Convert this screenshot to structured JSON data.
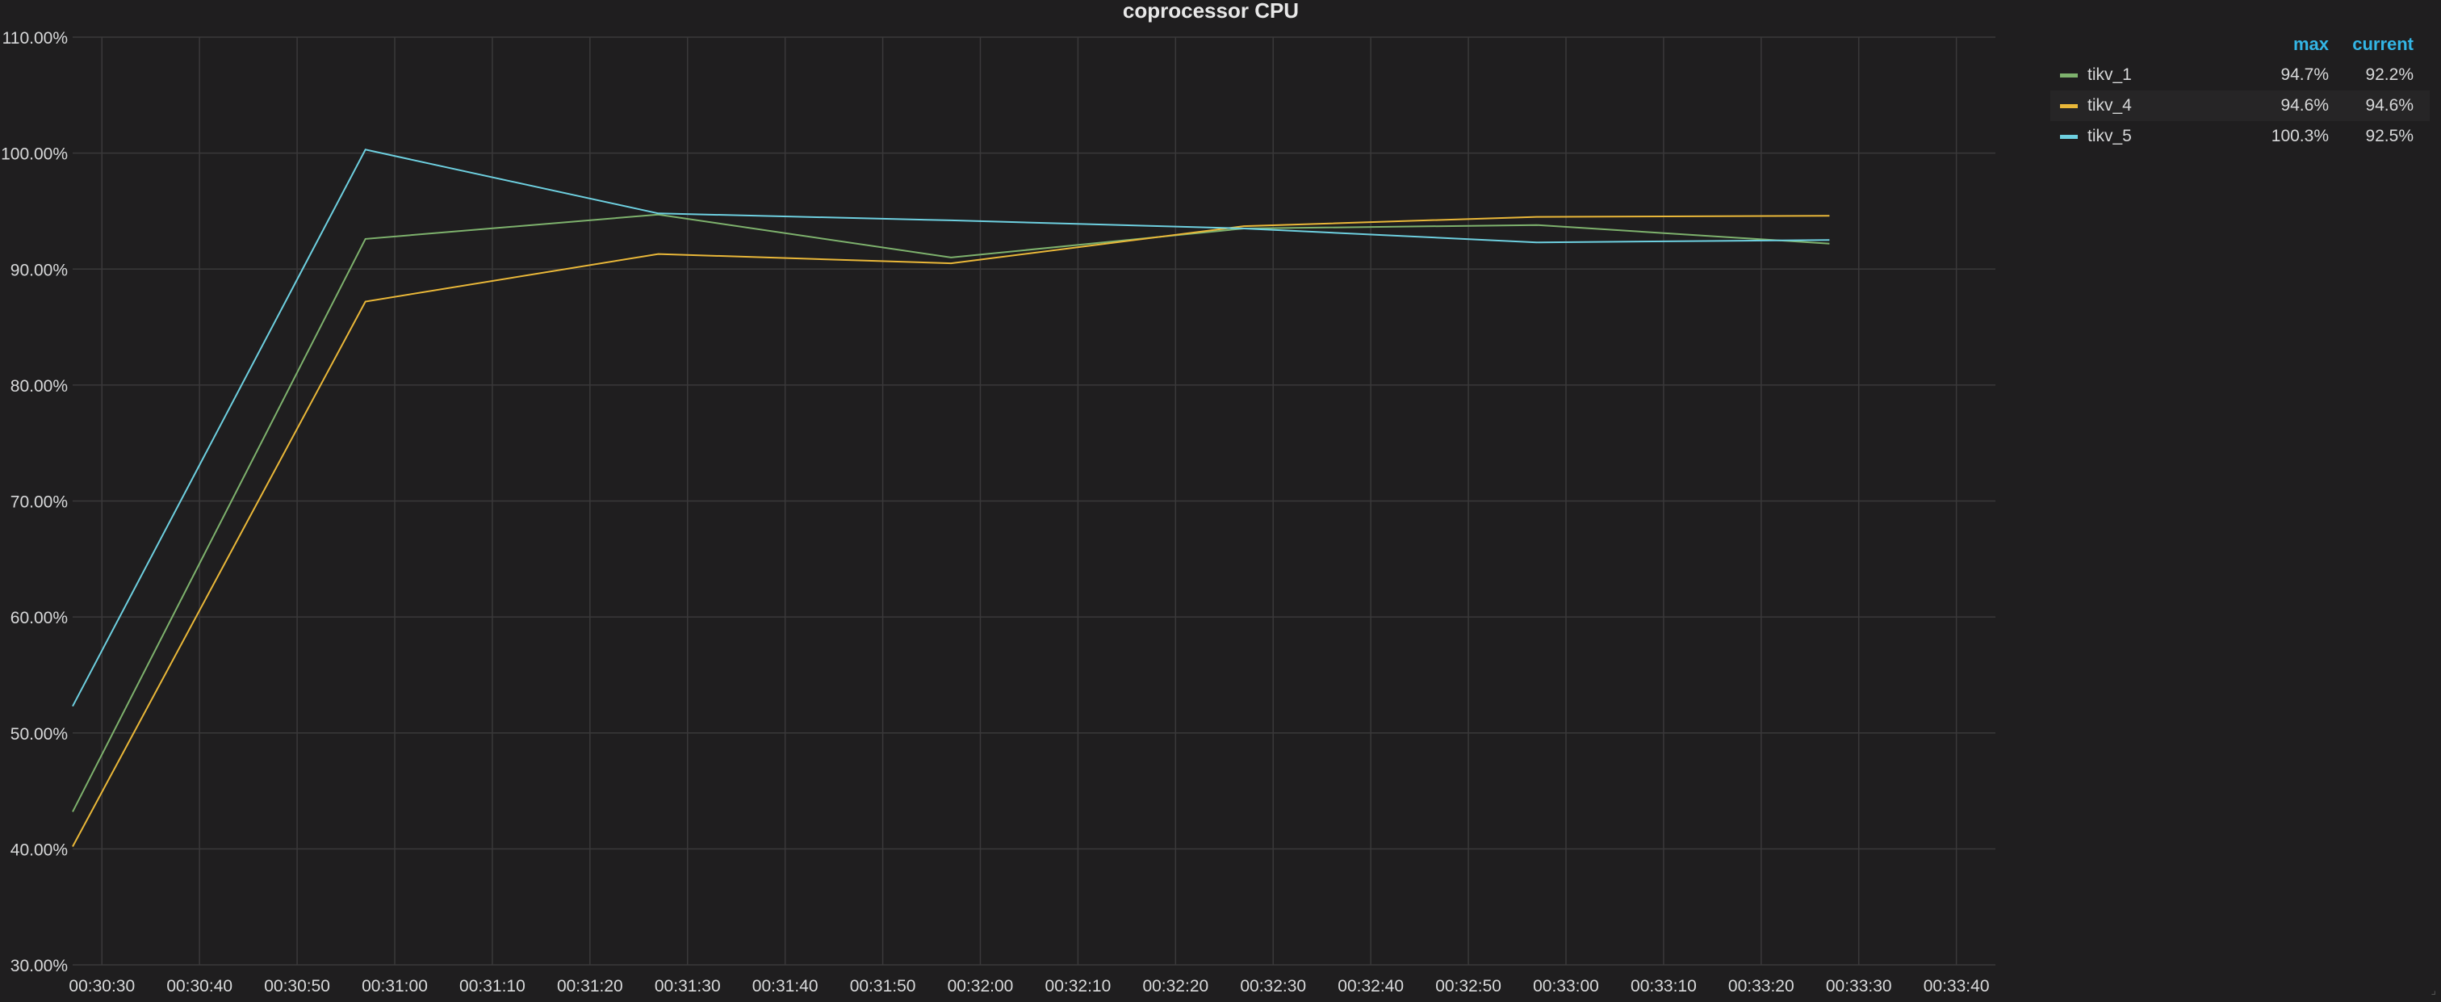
{
  "panel": {
    "title": "coprocessor CPU"
  },
  "legend": {
    "col_max": "max",
    "col_current": "current",
    "items": [
      {
        "name": "tikv_1",
        "color": "#7eb26d",
        "max": "94.7%",
        "current": "92.2%"
      },
      {
        "name": "tikv_4",
        "color": "#eab839",
        "max": "94.6%",
        "current": "94.6%"
      },
      {
        "name": "tikv_5",
        "color": "#6ed0e0",
        "max": "100.3%",
        "current": "92.5%"
      }
    ]
  },
  "chart_data": {
    "type": "line",
    "title": "coprocessor CPU",
    "xlabel": "",
    "ylabel": "",
    "ylim": [
      30,
      110
    ],
    "xlim": [
      "00:30:27",
      "00:33:44"
    ],
    "yticks": [
      "30.00%",
      "40.00%",
      "50.00%",
      "60.00%",
      "70.00%",
      "80.00%",
      "90.00%",
      "100.00%",
      "110.00%"
    ],
    "yticks_values": [
      30,
      40,
      50,
      60,
      70,
      80,
      90,
      100,
      110
    ],
    "xticks": [
      "00:30:30",
      "00:30:40",
      "00:30:50",
      "00:31:00",
      "00:31:10",
      "00:31:20",
      "00:31:30",
      "00:31:40",
      "00:31:50",
      "00:32:00",
      "00:32:10",
      "00:32:20",
      "00:32:30",
      "00:32:40",
      "00:32:50",
      "00:33:00",
      "00:33:10",
      "00:33:20",
      "00:33:30",
      "00:33:40"
    ],
    "grid": true,
    "legend_position": "top-right",
    "x": [
      "00:30:27",
      "00:30:57",
      "00:31:27",
      "00:31:57",
      "00:32:27",
      "00:32:57",
      "00:33:27"
    ],
    "series": [
      {
        "name": "tikv_1",
        "color": "#7eb26d",
        "values": [
          43.2,
          92.6,
          94.7,
          91.0,
          93.5,
          93.8,
          92.2
        ]
      },
      {
        "name": "tikv_4",
        "color": "#eab839",
        "values": [
          40.2,
          87.2,
          91.3,
          90.5,
          93.7,
          94.5,
          94.6
        ]
      },
      {
        "name": "tikv_5",
        "color": "#6ed0e0",
        "values": [
          52.3,
          100.3,
          94.8,
          94.2,
          93.5,
          92.3,
          92.5
        ]
      }
    ]
  }
}
